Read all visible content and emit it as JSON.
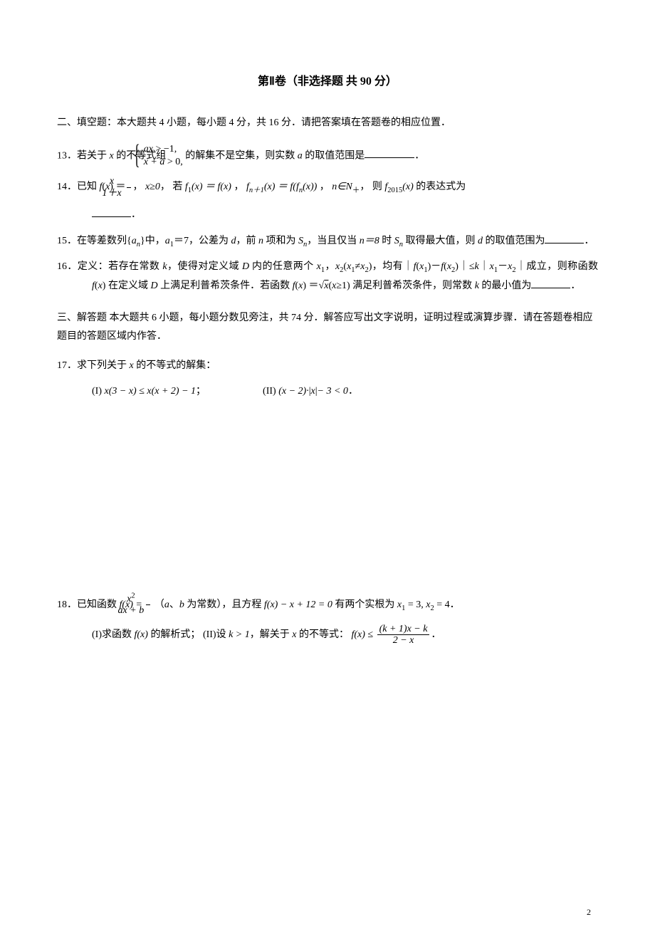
{
  "page": {
    "title": "第Ⅱ卷（非选择题 共 90 分）",
    "page_number": "2"
  },
  "section2_intro": "二、填空题：本大题共 4 小题，每小题 4 分，共 16 分．请把答案填在答题卷的相应位置．",
  "q13": {
    "num": "13．",
    "pre": "若关于 ",
    "var": "x",
    "mid1": " 的不等式组 ",
    "sys_line1_a": "ax",
    "sys_line1_b": " > −1,",
    "sys_line2_a": "x + a",
    "sys_line2_b": " > 0,",
    "mid2": " 的解集不是空集，则实数 ",
    "var2": "a",
    "tail": " 的取值范围是",
    "period": "．"
  },
  "q14": {
    "num": "14．",
    "t1": "已知 ",
    "fx": "f",
    "lp": "(",
    "x": "x",
    "rp": ") ＝",
    "frac_num": "x",
    "frac_den": "1＋x",
    "t2": "， ",
    "xge0": "x≥0",
    "t3": "， 若 ",
    "f1": "f",
    "f1sub": "1",
    "f1arg": "(x) ＝ f(x)",
    "t4": " ， ",
    "fn1": "f",
    "fn1sub": "n＋1",
    "fn1arg": "(x) ＝ f(f",
    "fn1sub2": "n",
    "fn1arg2": "(x))",
    "t5": " ， ",
    "nin": "n∈N",
    "plus": "＋",
    "t6": "， 则 ",
    "f2015": "f",
    "f2015sub": "2015",
    "f2015arg": "(x)",
    "t7": " 的表达式为",
    "period": "．"
  },
  "q15": {
    "num": "15．",
    "t1": "在等差数列{",
    "an_a": "a",
    "an_n": "n",
    "t2": "}中，",
    "a1_a": "a",
    "a1_1": "1",
    "t3": "＝7，公差为 ",
    "d": "d",
    "t4": "，前 ",
    "n": "n",
    "t5": " 项和为 ",
    "Sn_S": "S",
    "Sn_n": "n",
    "t6": "，当且仅当 ",
    "n8": "n＝8",
    "t7": " 时 ",
    "Sn2_S": "S",
    "Sn2_n": "n",
    "t8": " 取得最大值，则 ",
    "d2": "d",
    "t9": " 的取值范围为",
    "period": "．"
  },
  "q16": {
    "num": "16．",
    "t1": "定义：若存在常数 ",
    "k": "k",
    "t2": "，使得对定义域 ",
    "D": "D",
    "t3": " 内的任意两个 ",
    "x1_x": "x",
    "x1_1": "1",
    "t4": "，",
    "x2_x": "x",
    "x2_2": "2",
    "lp": "(",
    "x1b_x": "x",
    "x1b_1": "1",
    "neq": "≠",
    "x2b_x": "x",
    "x2b_2": "2",
    "rp": ")",
    "t5": "，均有｜",
    "fx1_f": "f",
    "fx1_lp": "(",
    "fx1_x": "x",
    "fx1_1": "1",
    "fx1_rp": ")",
    "minus": "－",
    "fx2_f": "f",
    "fx2_lp": "(",
    "fx2_x": "x",
    "fx2_2": "2",
    "fx2_rp": ")",
    "t6": "｜≤",
    "k2": "k",
    "t7": "｜",
    "x1c_x": "x",
    "x1c_1": "1",
    "minus2": "－",
    "x2c_x": "x",
    "x2c_2": "2",
    "t8": "｜成立，则称函数 ",
    "fpx_f": "f",
    "fpx_lp": "(",
    "fpx_x": "x",
    "fpx_rp": ")",
    "t9": " 在定义域 ",
    "D2": "D",
    "t10": " 上满足利普希茨条件．若函数 ",
    "fdef_f": "f",
    "fdef_lp": "(",
    "fdef_x": "x",
    "fdef_rp": ") ＝",
    "sqrt": "√",
    "sqrt_x": "x",
    "cond_lp": "(",
    "cond_x": "x",
    "cond": "≥1)",
    "t11": " 满足利普希茨条件，则常数 ",
    "k3": "k",
    "t12": " 的最小值为",
    "period": "．"
  },
  "section3_intro": "三、解答题 本大题共 6 小题，每小题分数见旁注，共 74 分．解答应写出文字说明，证明过程或演算步骤．请在答题卷相应题目的答题区域内作答．",
  "q17": {
    "num": "17．",
    "t1": "求下列关于 ",
    "x": "x",
    "t2": " 的不等式的解集：",
    "p1_label": "(I) ",
    "p1_expr": "x(3 − x) ≤ x(x + 2) − 1",
    "p1_semi": "；",
    "p2_label": "(II) ",
    "p2_expr_a": "(x − 2)·",
    "p2_abs_l": "|",
    "p2_abs_x": "x",
    "p2_abs_r": "|",
    "p2_expr_b": "− 3 < 0",
    "p2_period": "．"
  },
  "q18": {
    "num": "18．",
    "t1": "已知函数 ",
    "fdef_f": "f",
    "fdef_x": "(x) = ",
    "frac_num": "x",
    "frac_num_sup": "2",
    "frac_den": "ax + b",
    "t2": " （",
    "a": "a",
    "t2b": "、",
    "b": "b",
    "t3": " 为常数），且方程 ",
    "eq_f": "f",
    "eq": "(x) − x + 12 = 0",
    "t4": " 有两个实根为 ",
    "x1_x": "x",
    "x1_1": "1",
    "x1_eq": " = 3, ",
    "x2_x": "x",
    "x2_2": "2",
    "x2_eq": " = 4",
    "t5": "．",
    "p1_label": "(I)",
    "p1_t1": "求函数 ",
    "p1_f": "f",
    "p1_x": "(x)",
    "p1_t2": " 的解析式；",
    "p2_label": "(II)",
    "p2_t1": "设 ",
    "p2_k": "k > 1",
    "p2_t2": "，解关于 ",
    "p2_x": "x",
    "p2_t3": " 的不等式： ",
    "p2_f": "f",
    "p2_fx": "(x) ≤ ",
    "p2_frac_num": "(k + 1)x − k",
    "p2_frac_den": "2 − x",
    "p2_period": "．"
  }
}
